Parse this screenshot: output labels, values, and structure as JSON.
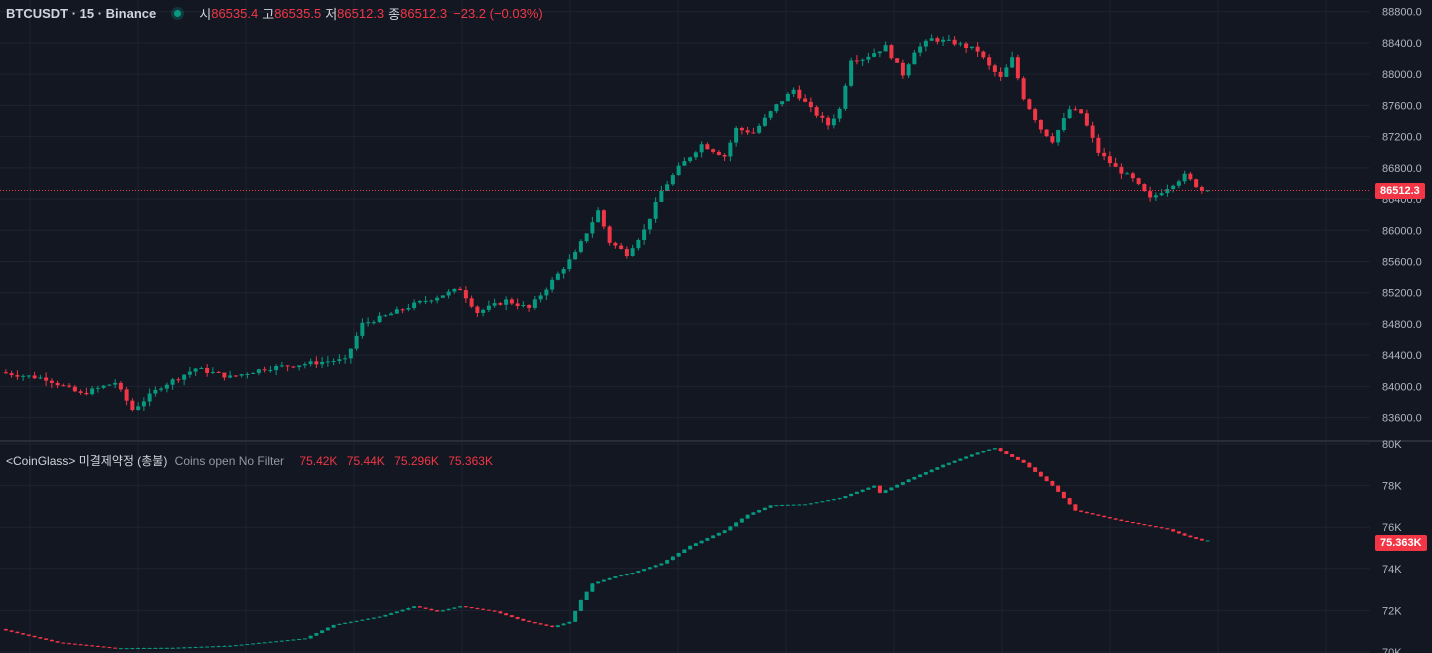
{
  "legend": {
    "symbol": "BTCUSDT · 15 · Binance",
    "open_key": "시",
    "open": "86535.4",
    "high_key": "고",
    "high": "86535.5",
    "low_key": "저",
    "low": "86512.3",
    "close_key": "종",
    "close": "86512.3",
    "change": "−23.2 (−0.03%)"
  },
  "indicator": {
    "name": "<CoinGlass> 미결제약정 (총불)",
    "params": "Coins open No Filter",
    "values": [
      "75.42K",
      "75.44K",
      "75.296K",
      "75.363K"
    ]
  },
  "price_axis": {
    "ticks": [
      "88800.0",
      "88400.0",
      "88000.0",
      "87600.0",
      "87200.0",
      "86800.0",
      "86400.0",
      "86000.0",
      "85600.0",
      "85200.0",
      "84800.0",
      "84400.0",
      "84000.0",
      "83600.0"
    ],
    "current_tag": "86512.3"
  },
  "oi_axis": {
    "ticks": [
      "80K",
      "78K",
      "76K",
      "74K",
      "72K",
      "70K"
    ],
    "current_tag": "75.363K"
  },
  "colors": {
    "up": "#089981",
    "down": "#f23645",
    "background": "#131722",
    "grid": "#1f2330",
    "text": "#b2b5be"
  },
  "chart_data": [
    {
      "type": "candlestick",
      "title": "BTCUSDT · 15 · Binance",
      "ylim": [
        83300,
        88950
      ],
      "current_price": 86512.3,
      "price_path": [
        [
          0,
          84180
        ],
        [
          8,
          84100
        ],
        [
          14,
          83900
        ],
        [
          20,
          84050
        ],
        [
          23,
          83700
        ],
        [
          28,
          84000
        ],
        [
          34,
          84230
        ],
        [
          40,
          84120
        ],
        [
          46,
          84230
        ],
        [
          52,
          84280
        ],
        [
          58,
          84330
        ],
        [
          60,
          84330
        ],
        [
          63,
          84800
        ],
        [
          67,
          84900
        ],
        [
          72,
          85050
        ],
        [
          76,
          85150
        ],
        [
          80,
          85250
        ],
        [
          83,
          84950
        ],
        [
          88,
          85100
        ],
        [
          92,
          85000
        ],
        [
          96,
          85350
        ],
        [
          100,
          85700
        ],
        [
          104,
          86250
        ],
        [
          106,
          85850
        ],
        [
          109,
          85700
        ],
        [
          112,
          86000
        ],
        [
          115,
          86500
        ],
        [
          118,
          86800
        ],
        [
          122,
          87100
        ],
        [
          126,
          86950
        ],
        [
          128,
          87300
        ],
        [
          131,
          87250
        ],
        [
          135,
          87600
        ],
        [
          138,
          87800
        ],
        [
          141,
          87550
        ],
        [
          144,
          87350
        ],
        [
          146,
          87550
        ],
        [
          148,
          88200
        ],
        [
          150,
          88200
        ],
        [
          154,
          88350
        ],
        [
          157,
          88000
        ],
        [
          159,
          88300
        ],
        [
          162,
          88450
        ],
        [
          166,
          88400
        ],
        [
          170,
          88300
        ],
        [
          172,
          88100
        ],
        [
          174,
          87950
        ],
        [
          176,
          88200
        ],
        [
          178,
          87700
        ],
        [
          181,
          87300
        ],
        [
          183,
          87150
        ],
        [
          186,
          87550
        ],
        [
          188,
          87500
        ],
        [
          191,
          87000
        ],
        [
          194,
          86800
        ],
        [
          197,
          86650
        ],
        [
          200,
          86400
        ],
        [
          203,
          86550
        ],
        [
          206,
          86700
        ],
        [
          209,
          86513
        ]
      ],
      "n_candles": 210
    },
    {
      "type": "candlestick",
      "title": "<CoinGlass> 미결제약정 (총불)",
      "ylim": [
        69950,
        80050
      ],
      "current_value": 75.363,
      "value_unit": "K",
      "oi_path": [
        [
          0,
          71100
        ],
        [
          10,
          70450
        ],
        [
          20,
          70180
        ],
        [
          30,
          70200
        ],
        [
          40,
          70300
        ],
        [
          53,
          70650
        ],
        [
          58,
          71300
        ],
        [
          66,
          71700
        ],
        [
          72,
          72200
        ],
        [
          76,
          71950
        ],
        [
          80,
          72200
        ],
        [
          86,
          71950
        ],
        [
          91,
          71500
        ],
        [
          96,
          71200
        ],
        [
          99,
          71450
        ],
        [
          101,
          72500
        ],
        [
          103,
          73300
        ],
        [
          107,
          73650
        ],
        [
          110,
          73800
        ],
        [
          115,
          74250
        ],
        [
          120,
          75100
        ],
        [
          126,
          75850
        ],
        [
          130,
          76600
        ],
        [
          134,
          77050
        ],
        [
          140,
          77100
        ],
        [
          146,
          77400
        ],
        [
          152,
          78000
        ],
        [
          153,
          77650
        ],
        [
          158,
          78300
        ],
        [
          164,
          79000
        ],
        [
          170,
          79600
        ],
        [
          173,
          79800
        ],
        [
          178,
          79100
        ],
        [
          183,
          78000
        ],
        [
          187,
          76800
        ],
        [
          195,
          76300
        ],
        [
          203,
          75900
        ],
        [
          206,
          75600
        ],
        [
          209,
          75363
        ]
      ]
    }
  ]
}
